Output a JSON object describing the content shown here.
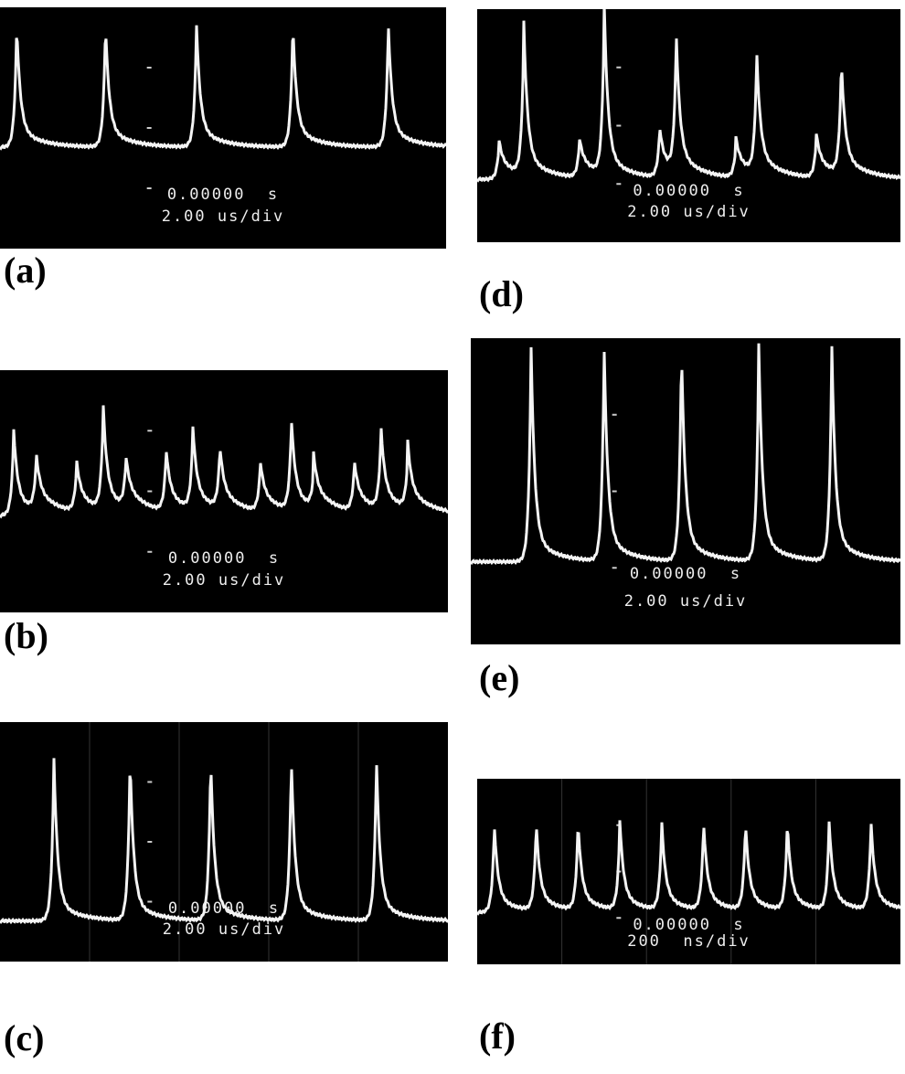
{
  "panels": [
    {
      "label": "(a)",
      "time": "0.00000  s",
      "scale": "2.00 us/div"
    },
    {
      "label": "(b)",
      "time": "0.00000  s",
      "scale": "2.00 us/div"
    },
    {
      "label": "(c)",
      "time": "0.00000  s",
      "scale": "2.00 us/div"
    },
    {
      "label": "(d)",
      "time": "0.00000  s",
      "scale": "2.00 us/div"
    },
    {
      "label": "(e)",
      "time": "0.00000  s",
      "scale": "2.00 us/div"
    },
    {
      "label": "(f)",
      "time": "0.00000  s",
      "scale": "200  ns/div"
    }
  ]
}
